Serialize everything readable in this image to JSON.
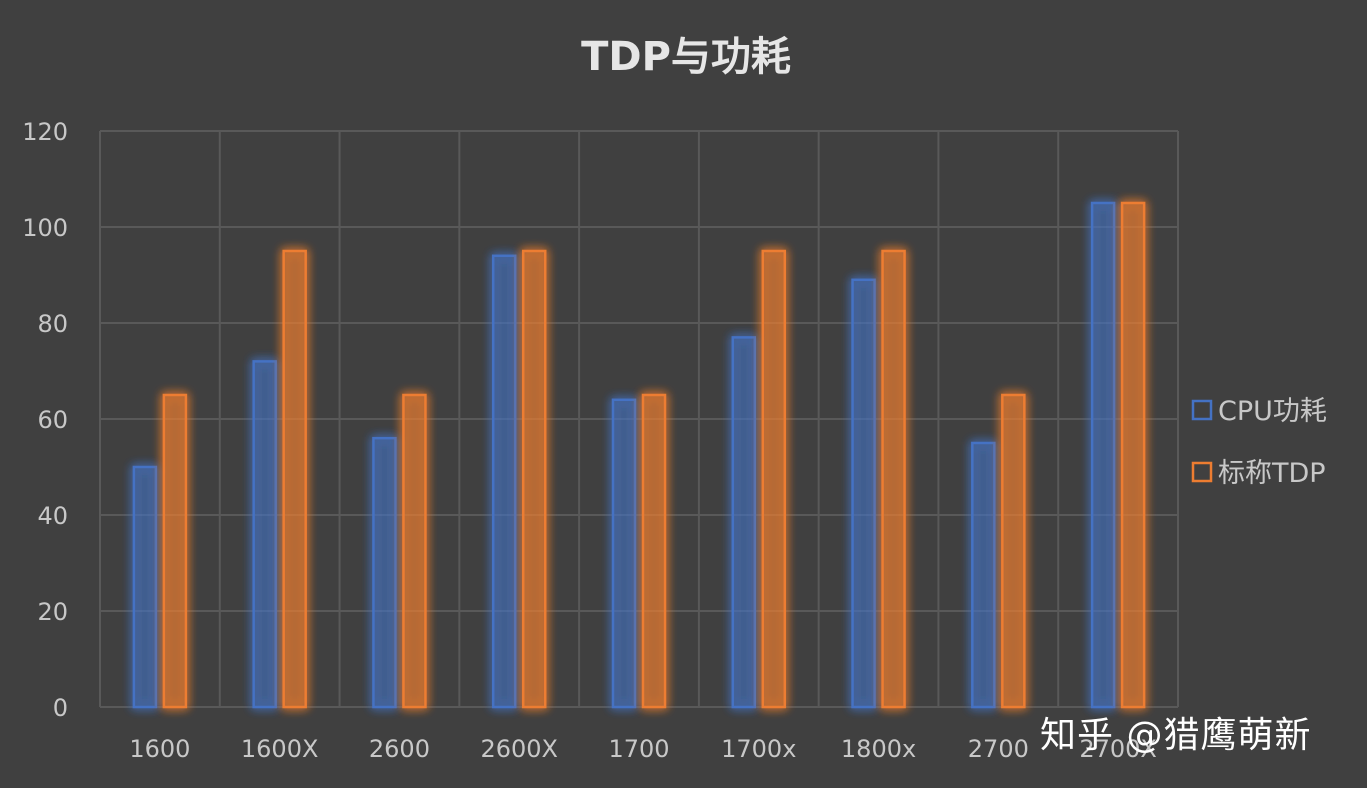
{
  "chart_data": {
    "type": "bar",
    "title": "TDP与功耗",
    "categories": [
      "1600",
      "1600X",
      "2600",
      "2600X",
      "1700",
      "1700x",
      "1800x",
      "2700",
      "2700X"
    ],
    "series": [
      {
        "name": "CPU功耗",
        "values": [
          50,
          72,
          56,
          94,
          64,
          77,
          89,
          55,
          105
        ],
        "color": "#4472c4"
      },
      {
        "name": "标称TDP",
        "values": [
          65,
          95,
          65,
          95,
          65,
          95,
          95,
          65,
          105
        ],
        "color": "#ed7d31"
      }
    ],
    "ylim": [
      0,
      120
    ],
    "yticks": [
      0,
      20,
      40,
      60,
      80,
      100,
      120
    ],
    "grid": true,
    "legend": "right",
    "xlabel": "",
    "ylabel": ""
  },
  "watermark": "知乎 @猎鹰萌新"
}
